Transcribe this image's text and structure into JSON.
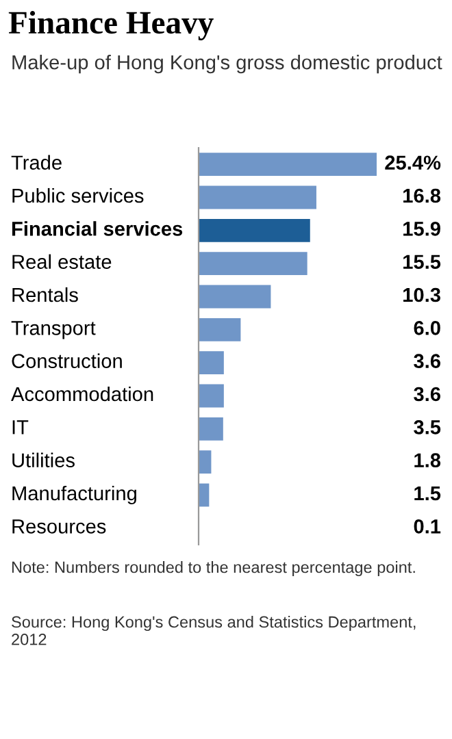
{
  "chart_data": {
    "type": "bar",
    "orientation": "horizontal",
    "title": "Finance Heavy",
    "subtitle": "Make-up of Hong Kong's gross domestic product",
    "categories": [
      "Trade",
      "Public services",
      "Financial services",
      "Real estate",
      "Rentals",
      "Transport",
      "Construction",
      "Accommodation",
      "IT",
      "Utilities",
      "Manufacturing",
      "Resources"
    ],
    "values": [
      25.4,
      16.8,
      15.9,
      15.5,
      10.3,
      6.0,
      3.6,
      3.6,
      3.5,
      1.8,
      1.5,
      0.1
    ],
    "value_labels": [
      "25.4%",
      "16.8",
      "15.9",
      "15.5",
      "10.3",
      "6.0",
      "3.6",
      "3.6",
      "3.5",
      "1.8",
      "1.5",
      "0.1"
    ],
    "colors": [
      "#7096c8",
      "#7096c8",
      "#1d5e96",
      "#7096c8",
      "#7096c8",
      "#7096c8",
      "#7096c8",
      "#7096c8",
      "#7096c8",
      "#7096c8",
      "#7096c8",
      "#7096c8"
    ],
    "annotations": [
      "Note: Numbers rounded to the nearest percentage point.",
      "Source: Hong Kong's Census and Statistics Department, 2012"
    ]
  }
}
